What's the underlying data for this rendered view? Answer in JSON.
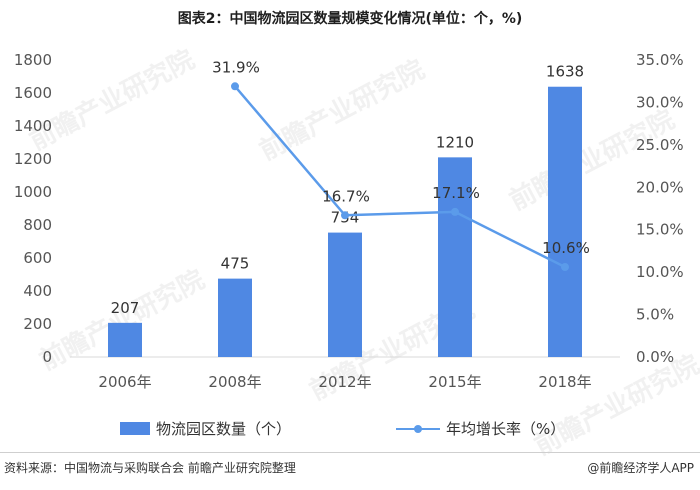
{
  "title": "图表2：中国物流园区数量规模变化情况(单位：个，%)",
  "source": "资料来源：中国物流与采购联合会 前瞻产业研究院整理",
  "credit": "@前瞻经济学人APP",
  "watermark": "前瞻产业研究院",
  "colors": {
    "bar": "#4f88e3",
    "line": "#5b9bea",
    "axis_text": "#555555",
    "label_text": "#333333"
  },
  "chart_data": {
    "type": "bar",
    "categories": [
      "2006年",
      "2008年",
      "2012年",
      "2015年",
      "2018年"
    ],
    "series": [
      {
        "name": "物流园区数量（个）",
        "type": "bar",
        "axis": "left",
        "values": [
          207,
          475,
          754,
          1210,
          1638
        ],
        "labels": [
          "207",
          "475",
          "754",
          "1210",
          "1638"
        ]
      },
      {
        "name": "年均增长率（%）",
        "type": "line",
        "axis": "right",
        "values": [
          null,
          31.9,
          16.7,
          17.1,
          10.6
        ],
        "labels": [
          "",
          "31.9%",
          "16.7%",
          "17.1%",
          "10.6%"
        ]
      }
    ],
    "y_left": {
      "min": 0,
      "max": 1800,
      "ticks": [
        "0",
        "200",
        "400",
        "600",
        "800",
        "1000",
        "1200",
        "1400",
        "1600",
        "1800"
      ]
    },
    "y_right": {
      "min": 0,
      "max": 35,
      "ticks": [
        "0.0%",
        "5.0%",
        "10.0%",
        "15.0%",
        "20.0%",
        "25.0%",
        "30.0%",
        "35.0%"
      ]
    },
    "grid": false,
    "legend_position": "bottom"
  }
}
